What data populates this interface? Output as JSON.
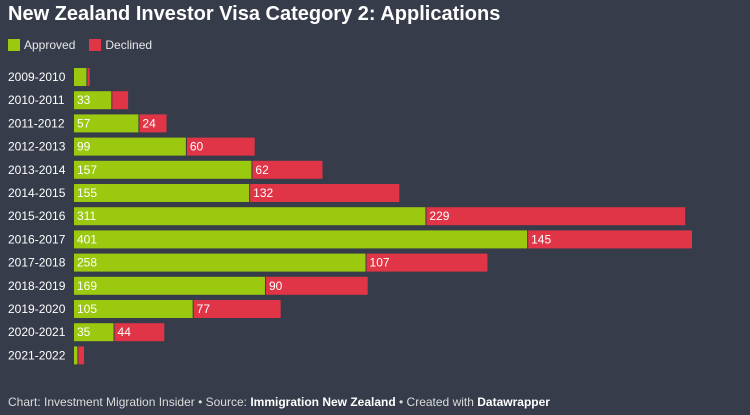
{
  "chart_data": {
    "type": "bar",
    "orientation": "horizontal",
    "stacked": true,
    "title": "New Zealand Investor Visa Category 2: Applications",
    "legend_position": "top-left",
    "categories": [
      "2009-2010",
      "2010-2011",
      "2011-2012",
      "2012-2013",
      "2013-2014",
      "2014-2015",
      "2015-2016",
      "2016-2017",
      "2017-2018",
      "2018-2019",
      "2019-2020",
      "2020-2021",
      "2021-2022"
    ],
    "series": [
      {
        "name": "Approved",
        "color": "#9ac90f",
        "values": [
          11,
          33,
          57,
          99,
          157,
          155,
          311,
          401,
          258,
          169,
          105,
          35,
          3
        ],
        "labels": [
          "",
          "33",
          "57",
          "99",
          "157",
          "155",
          "311",
          "401",
          "258",
          "169",
          "105",
          "35",
          ""
        ]
      },
      {
        "name": "Declined",
        "color": "#e03546",
        "values": [
          2,
          14,
          24,
          60,
          62,
          132,
          229,
          145,
          107,
          90,
          77,
          44,
          5
        ],
        "labels": [
          "",
          "",
          "24",
          "60",
          "62",
          "132",
          "229",
          "145",
          "107",
          "90",
          "77",
          "44",
          ""
        ]
      }
    ],
    "xlim": [
      0,
      550
    ],
    "grid": false
  },
  "footer": {
    "prefix": "Chart: Investment Migration Insider • Source: ",
    "source": "Immigration New Zealand",
    "middle": " • Created with ",
    "tool": "Datawrapper"
  }
}
